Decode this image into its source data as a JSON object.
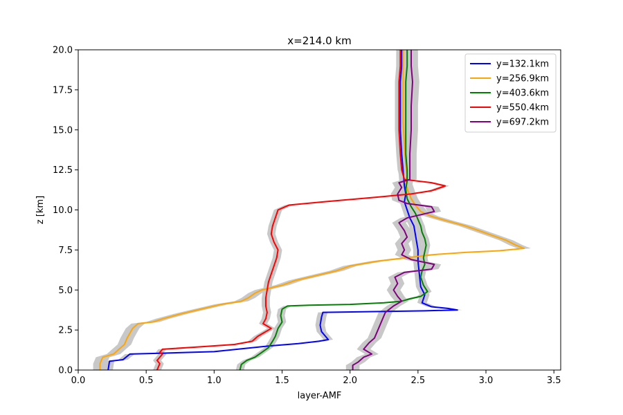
{
  "chart_data": {
    "type": "line",
    "title": "x=214.0 km",
    "xlabel": "layer-AMF",
    "ylabel": "z [km]",
    "xlim": [
      0.0,
      3.55
    ],
    "ylim": [
      0.0,
      20.0
    ],
    "xticks": [
      {
        "value": 0.0,
        "label": "0.0"
      },
      {
        "value": 0.5,
        "label": "0.5"
      },
      {
        "value": 1.0,
        "label": "1.0"
      },
      {
        "value": 1.5,
        "label": "1.5"
      },
      {
        "value": 2.0,
        "label": "2.0"
      },
      {
        "value": 2.5,
        "label": "2.5"
      },
      {
        "value": 3.0,
        "label": "3.0"
      },
      {
        "value": 3.5,
        "label": "3.5"
      }
    ],
    "yticks": [
      {
        "value": 0.0,
        "label": "0.0"
      },
      {
        "value": 2.5,
        "label": "2.5"
      },
      {
        "value": 5.0,
        "label": "5.0"
      },
      {
        "value": 7.5,
        "label": "7.5"
      },
      {
        "value": 10.0,
        "label": "10.0"
      },
      {
        "value": 12.5,
        "label": "12.5"
      },
      {
        "value": 15.0,
        "label": "15.0"
      },
      {
        "value": 17.5,
        "label": "17.5"
      },
      {
        "value": 20.0,
        "label": "20.0"
      }
    ],
    "grid": false,
    "legend_position": "top-right",
    "band_color": "#c8c8c8",
    "series": [
      {
        "name": "y=132.1km",
        "color": "#0000ff",
        "spread": 0.035,
        "points": [
          [
            0.22,
            0.0
          ],
          [
            0.23,
            0.55
          ],
          [
            0.33,
            0.65
          ],
          [
            0.38,
            1.0
          ],
          [
            0.6,
            1.05
          ],
          [
            1.0,
            1.15
          ],
          [
            1.4,
            1.5
          ],
          [
            1.62,
            1.65
          ],
          [
            1.77,
            1.8
          ],
          [
            1.84,
            1.9
          ],
          [
            1.79,
            2.4
          ],
          [
            1.78,
            2.8
          ],
          [
            1.79,
            3.3
          ],
          [
            1.8,
            3.6
          ],
          [
            2.55,
            3.7
          ],
          [
            2.79,
            3.75
          ],
          [
            2.72,
            3.85
          ],
          [
            2.6,
            3.95
          ],
          [
            2.53,
            4.2
          ],
          [
            2.55,
            4.7
          ],
          [
            2.52,
            5.2
          ],
          [
            2.51,
            6.0
          ],
          [
            2.5,
            6.8
          ],
          [
            2.5,
            7.5
          ],
          [
            2.49,
            8.0
          ],
          [
            2.48,
            8.5
          ],
          [
            2.47,
            9.0
          ],
          [
            2.44,
            9.5
          ],
          [
            2.42,
            10.0
          ],
          [
            2.4,
            10.5
          ],
          [
            2.41,
            11.0
          ],
          [
            2.4,
            11.5
          ],
          [
            2.39,
            12.5
          ],
          [
            2.38,
            13.5
          ],
          [
            2.37,
            15.0
          ],
          [
            2.37,
            16.5
          ],
          [
            2.37,
            18.0
          ],
          [
            2.38,
            19.0
          ],
          [
            2.38,
            20.0
          ]
        ]
      },
      {
        "name": "y=256.9km",
        "color": "#ffa500",
        "spread": 0.05,
        "points": [
          [
            0.16,
            0.0
          ],
          [
            0.16,
            0.4
          ],
          [
            0.18,
            0.8
          ],
          [
            0.26,
            1.0
          ],
          [
            0.3,
            1.3
          ],
          [
            0.34,
            1.6
          ],
          [
            0.36,
            2.0
          ],
          [
            0.38,
            2.3
          ],
          [
            0.4,
            2.6
          ],
          [
            0.44,
            2.9
          ],
          [
            0.55,
            3.0
          ],
          [
            0.62,
            3.2
          ],
          [
            0.75,
            3.5
          ],
          [
            0.9,
            3.8
          ],
          [
            1.05,
            4.1
          ],
          [
            1.2,
            4.3
          ],
          [
            1.25,
            4.5
          ],
          [
            1.3,
            4.8
          ],
          [
            1.35,
            5.0
          ],
          [
            1.5,
            5.3
          ],
          [
            1.6,
            5.6
          ],
          [
            1.75,
            5.9
          ],
          [
            1.9,
            6.2
          ],
          [
            2.0,
            6.5
          ],
          [
            2.2,
            6.8
          ],
          [
            2.4,
            7.0
          ],
          [
            2.6,
            7.2
          ],
          [
            2.85,
            7.35
          ],
          [
            3.1,
            7.45
          ],
          [
            3.28,
            7.6
          ],
          [
            3.22,
            7.8
          ],
          [
            3.15,
            8.1
          ],
          [
            3.05,
            8.4
          ],
          [
            2.95,
            8.7
          ],
          [
            2.85,
            9.0
          ],
          [
            2.72,
            9.3
          ],
          [
            2.6,
            9.6
          ],
          [
            2.52,
            9.9
          ],
          [
            2.48,
            10.3
          ],
          [
            2.45,
            10.7
          ],
          [
            2.43,
            11.1
          ],
          [
            2.41,
            11.6
          ],
          [
            2.42,
            12.2
          ],
          [
            2.41,
            13.0
          ],
          [
            2.4,
            14.0
          ],
          [
            2.39,
            15.5
          ],
          [
            2.39,
            17.0
          ],
          [
            2.39,
            18.5
          ],
          [
            2.39,
            20.0
          ]
        ]
      },
      {
        "name": "y=403.6km",
        "color": "#008000",
        "spread": 0.03,
        "points": [
          [
            1.19,
            0.0
          ],
          [
            1.2,
            0.35
          ],
          [
            1.24,
            0.6
          ],
          [
            1.3,
            0.8
          ],
          [
            1.35,
            1.1
          ],
          [
            1.4,
            1.4
          ],
          [
            1.43,
            1.8
          ],
          [
            1.45,
            2.1
          ],
          [
            1.47,
            2.6
          ],
          [
            1.5,
            3.0
          ],
          [
            1.49,
            3.4
          ],
          [
            1.5,
            3.8
          ],
          [
            1.54,
            4.0
          ],
          [
            1.7,
            4.05
          ],
          [
            2.0,
            4.1
          ],
          [
            2.25,
            4.2
          ],
          [
            2.38,
            4.3
          ],
          [
            2.44,
            4.45
          ],
          [
            2.52,
            4.6
          ],
          [
            2.57,
            4.9
          ],
          [
            2.54,
            5.3
          ],
          [
            2.52,
            5.8
          ],
          [
            2.53,
            6.2
          ],
          [
            2.55,
            6.6
          ],
          [
            2.54,
            7.0
          ],
          [
            2.55,
            7.4
          ],
          [
            2.56,
            7.8
          ],
          [
            2.55,
            8.2
          ],
          [
            2.53,
            8.6
          ],
          [
            2.52,
            9.0
          ],
          [
            2.5,
            9.4
          ],
          [
            2.48,
            9.8
          ],
          [
            2.45,
            10.2
          ],
          [
            2.42,
            10.7
          ],
          [
            2.41,
            11.3
          ],
          [
            2.42,
            11.8
          ],
          [
            2.42,
            12.5
          ],
          [
            2.41,
            13.5
          ],
          [
            2.41,
            15.0
          ],
          [
            2.41,
            16.5
          ],
          [
            2.41,
            18.0
          ],
          [
            2.42,
            19.0
          ],
          [
            2.42,
            20.0
          ]
        ]
      },
      {
        "name": "y=550.4km",
        "color": "#ff0000",
        "spread": 0.03,
        "points": [
          [
            0.58,
            0.0
          ],
          [
            0.6,
            0.4
          ],
          [
            0.58,
            0.6
          ],
          [
            0.62,
            1.0
          ],
          [
            0.6,
            1.1
          ],
          [
            0.62,
            1.3
          ],
          [
            0.9,
            1.45
          ],
          [
            1.15,
            1.6
          ],
          [
            1.28,
            1.8
          ],
          [
            1.32,
            2.1
          ],
          [
            1.38,
            2.4
          ],
          [
            1.42,
            2.6
          ],
          [
            1.36,
            2.9
          ],
          [
            1.38,
            3.2
          ],
          [
            1.39,
            3.6
          ],
          [
            1.38,
            4.0
          ],
          [
            1.38,
            4.5
          ],
          [
            1.39,
            5.0
          ],
          [
            1.4,
            5.5
          ],
          [
            1.42,
            6.0
          ],
          [
            1.44,
            6.5
          ],
          [
            1.46,
            7.0
          ],
          [
            1.47,
            7.5
          ],
          [
            1.44,
            8.0
          ],
          [
            1.42,
            8.5
          ],
          [
            1.43,
            9.0
          ],
          [
            1.45,
            9.5
          ],
          [
            1.47,
            10.0
          ],
          [
            1.55,
            10.3
          ],
          [
            1.8,
            10.5
          ],
          [
            2.2,
            10.8
          ],
          [
            2.45,
            11.0
          ],
          [
            2.6,
            11.2
          ],
          [
            2.7,
            11.5
          ],
          [
            2.6,
            11.7
          ],
          [
            2.4,
            11.9
          ],
          [
            2.38,
            12.5
          ],
          [
            2.37,
            13.5
          ],
          [
            2.36,
            15.0
          ],
          [
            2.36,
            16.5
          ],
          [
            2.36,
            18.0
          ],
          [
            2.37,
            19.0
          ],
          [
            2.37,
            20.0
          ]
        ]
      },
      {
        "name": "y=697.2km",
        "color": "#800080",
        "spread": 0.05,
        "points": [
          [
            2.02,
            0.0
          ],
          [
            2.02,
            0.3
          ],
          [
            2.06,
            0.5
          ],
          [
            2.1,
            0.8
          ],
          [
            2.16,
            1.0
          ],
          [
            2.1,
            1.3
          ],
          [
            2.14,
            1.7
          ],
          [
            2.18,
            2.0
          ],
          [
            2.2,
            2.4
          ],
          [
            2.22,
            2.8
          ],
          [
            2.24,
            3.2
          ],
          [
            2.26,
            3.6
          ],
          [
            2.32,
            4.0
          ],
          [
            2.38,
            4.3
          ],
          [
            2.35,
            4.6
          ],
          [
            2.32,
            5.0
          ],
          [
            2.35,
            5.4
          ],
          [
            2.33,
            5.8
          ],
          [
            2.4,
            6.1
          ],
          [
            2.6,
            6.3
          ],
          [
            2.62,
            6.6
          ],
          [
            2.45,
            6.9
          ],
          [
            2.38,
            7.2
          ],
          [
            2.4,
            7.5
          ],
          [
            2.38,
            7.9
          ],
          [
            2.42,
            8.3
          ],
          [
            2.4,
            8.7
          ],
          [
            2.36,
            9.2
          ],
          [
            2.42,
            9.5
          ],
          [
            2.52,
            9.7
          ],
          [
            2.62,
            9.9
          ],
          [
            2.6,
            10.2
          ],
          [
            2.42,
            10.4
          ],
          [
            2.36,
            10.6
          ],
          [
            2.35,
            11.0
          ],
          [
            2.38,
            11.4
          ],
          [
            2.36,
            11.7
          ],
          [
            2.44,
            11.9
          ],
          [
            2.44,
            12.5
          ],
          [
            2.44,
            13.5
          ],
          [
            2.45,
            15.0
          ],
          [
            2.45,
            16.5
          ],
          [
            2.46,
            18.0
          ],
          [
            2.45,
            19.0
          ],
          [
            2.45,
            20.0
          ]
        ]
      }
    ]
  }
}
